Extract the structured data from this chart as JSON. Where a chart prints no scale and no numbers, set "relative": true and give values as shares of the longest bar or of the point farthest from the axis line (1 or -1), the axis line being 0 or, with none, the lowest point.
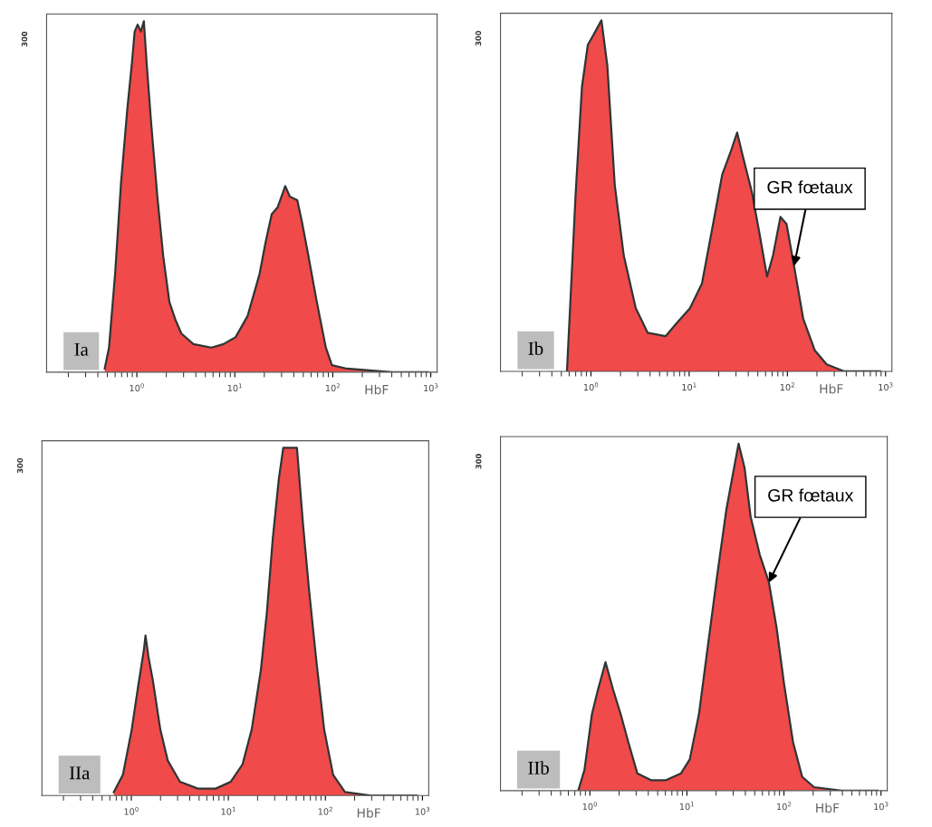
{
  "chart_data": [
    {
      "type": "area",
      "title": "Ia",
      "xlabel": "HbF",
      "relative": true,
      "log": "x",
      "color": "#f04a4a",
      "annotations": [
        "300"
      ],
      "xlim": [
        0.12,
        1160
      ],
      "xticks": [
        {
          "value": 1,
          "label": "10$^{0}$"
        },
        {
          "value": 10,
          "label": "10$^{1}$"
        },
        {
          "value": 100,
          "label": "10$^{2}$"
        },
        {
          "value": 1000,
          "label": "10$^{3}$"
        }
      ],
      "x": [
        0.47,
        0.52,
        0.6,
        0.69,
        0.8,
        0.89,
        0.95,
        1.02,
        1.1,
        1.18,
        1.26,
        1.4,
        1.62,
        1.86,
        2.15,
        2.47,
        2.85,
        3.78,
        5.78,
        7.67,
        10.2,
        13.5,
        17.9,
        20.6,
        23.8,
        27.4,
        32.7,
        36.4,
        43.4,
        48.3,
        55.6,
        68.7,
        84.9,
        97.9,
        139,
        403,
        942
      ],
      "values": [
        0.01,
        0.07,
        0.28,
        0.54,
        0.75,
        0.88,
        0.97,
        0.99,
        0.97,
        1.0,
        0.88,
        0.71,
        0.5,
        0.33,
        0.2,
        0.15,
        0.11,
        0.08,
        0.07,
        0.08,
        0.1,
        0.16,
        0.28,
        0.37,
        0.45,
        0.47,
        0.53,
        0.5,
        0.49,
        0.43,
        0.34,
        0.2,
        0.07,
        0.02,
        0.01,
        0.0,
        0.0
      ]
    },
    {
      "type": "area",
      "title": "Ib",
      "xlabel": "HbF",
      "relative": true,
      "log": "x",
      "color": "#f04a4a",
      "annotations": [
        "300",
        {
          "text": "GR fœtaux",
          "x": 117,
          "y": 0.3
        }
      ],
      "xlim": [
        0.12,
        1160
      ],
      "xticks": [
        {
          "value": 1,
          "label": "10$^{0}$"
        },
        {
          "value": 10,
          "label": "10$^{1}$"
        },
        {
          "value": 100,
          "label": "10$^{2}$"
        },
        {
          "value": 1000,
          "label": "10$^{3}$"
        }
      ],
      "x": [
        0.57,
        0.7,
        0.81,
        0.93,
        1.07,
        1.28,
        1.47,
        1.75,
        2.16,
        2.86,
        3.78,
        5.75,
        7.6,
        10.2,
        13.5,
        17.8,
        21.7,
        26.8,
        30.8,
        35.4,
        43.6,
        52.2,
        62.1,
        71.4,
        85,
        98,
        117,
        145,
        190,
        251,
        380,
        880
      ],
      "values": [
        0.0,
        0.51,
        0.81,
        0.93,
        0.96,
        1.0,
        0.87,
        0.53,
        0.33,
        0.18,
        0.11,
        0.1,
        0.14,
        0.18,
        0.25,
        0.43,
        0.56,
        0.63,
        0.68,
        0.61,
        0.51,
        0.39,
        0.27,
        0.33,
        0.44,
        0.42,
        0.3,
        0.15,
        0.06,
        0.02,
        0.0,
        0.0
      ]
    },
    {
      "type": "area",
      "title": "IIa",
      "xlabel": "HbF",
      "relative": true,
      "log": "x",
      "color": "#f04a4a",
      "annotations": [
        "300"
      ],
      "xlim": [
        0.12,
        1160
      ],
      "xticks": [
        {
          "value": 1,
          "label": "10$^{0}$"
        },
        {
          "value": 10,
          "label": "10$^{1}$"
        },
        {
          "value": 100,
          "label": "10$^{2}$"
        },
        {
          "value": 1000,
          "label": "10$^{3}$"
        }
      ],
      "x": [
        0.66,
        0.82,
        1.01,
        1.17,
        1.35,
        1.4,
        1.5,
        1.67,
        1.99,
        2.38,
        3.17,
        4.85,
        7.4,
        10.6,
        14.0,
        17.4,
        21.6,
        25.0,
        28.7,
        33.1,
        36.8,
        42.4,
        50.9,
        58.8,
        67.9,
        81.2,
        97.1,
        120,
        159,
        294,
        875
      ],
      "values": [
        0.01,
        0.06,
        0.19,
        0.31,
        0.42,
        0.46,
        0.4,
        0.33,
        0.19,
        0.1,
        0.04,
        0.02,
        0.02,
        0.04,
        0.09,
        0.19,
        0.36,
        0.53,
        0.74,
        0.91,
        1.0,
        1.0,
        1.0,
        0.78,
        0.59,
        0.38,
        0.19,
        0.06,
        0.01,
        0.0,
        0.0
      ]
    },
    {
      "type": "area",
      "title": "IIb",
      "xlabel": "HbF",
      "relative": true,
      "log": "x",
      "color": "#f04a4a",
      "annotations": [
        "300",
        {
          "text": "GR fœtaux",
          "x": 70.0,
          "y": 0.6
        }
      ],
      "xlim": [
        0.12,
        1160
      ],
      "xticks": [
        {
          "value": 1,
          "label": "10$^{0}$"
        },
        {
          "value": 10,
          "label": "10$^{1}$"
        },
        {
          "value": 100,
          "label": "10$^{2}$"
        },
        {
          "value": 1000,
          "label": "10$^{3}$"
        }
      ],
      "x": [
        0.76,
        0.88,
        1.05,
        1.21,
        1.45,
        1.74,
        2.08,
        2.49,
        3.08,
        4.26,
        6.1,
        8.7,
        10.7,
        13.3,
        16.5,
        20.5,
        25.5,
        30.6,
        34.1,
        39.3,
        45.3,
        56.3,
        70.0,
        83.9,
        100,
        124,
        154,
        204,
        391,
        920
      ],
      "values": [
        0.0,
        0.06,
        0.22,
        0.29,
        0.37,
        0.29,
        0.22,
        0.14,
        0.05,
        0.03,
        0.03,
        0.05,
        0.09,
        0.22,
        0.42,
        0.62,
        0.81,
        0.93,
        1.0,
        0.93,
        0.79,
        0.68,
        0.6,
        0.47,
        0.31,
        0.14,
        0.04,
        0.01,
        0.0,
        0.0
      ]
    }
  ]
}
